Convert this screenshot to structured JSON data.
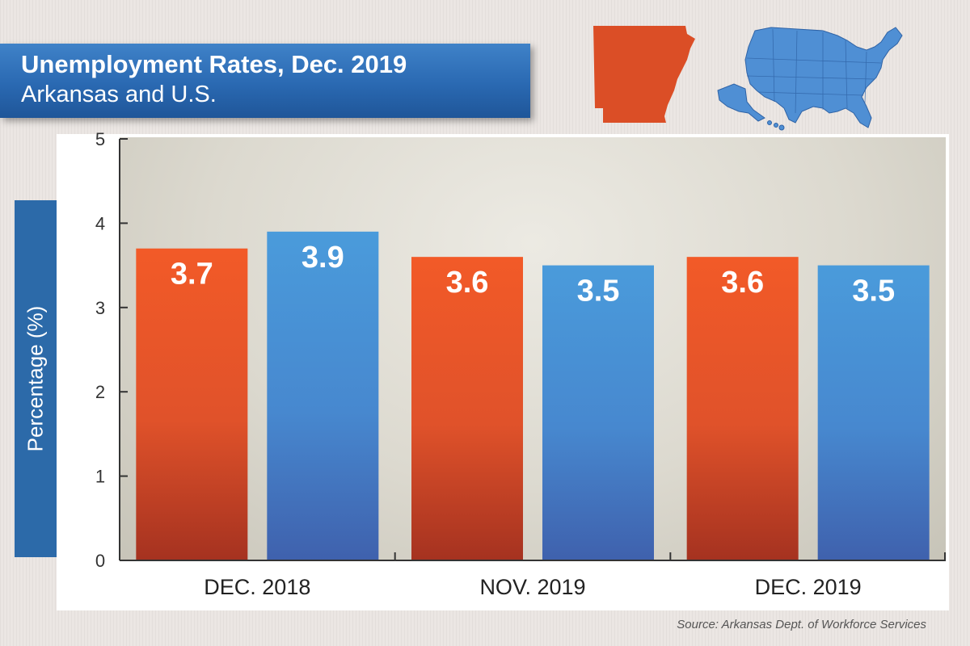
{
  "header": {
    "title": "Unemployment Rates, Dec. 2019",
    "subtitle": "Arkansas and U.S."
  },
  "icons": [
    "arkansas-map-icon",
    "us-map-icon"
  ],
  "colors": {
    "arkansas_top": "#f25a28",
    "arkansas_bottom": "#a53220",
    "us_top": "#4a9bdb",
    "us_bottom": "#3f61ad",
    "banner": "#2a69b2"
  },
  "source": "Source: Arkansas Dept. of Workforce Services",
  "chart_data": {
    "type": "bar",
    "categories": [
      "DEC. 2018",
      "NOV. 2019",
      "DEC. 2019"
    ],
    "series": [
      {
        "values": [
          3.7,
          3.6,
          3.6
        ]
      },
      {
        "values": [
          3.9,
          3.5,
          3.5
        ]
      }
    ],
    "data_labels": [
      [
        "3.7",
        "3.6",
        "3.6"
      ],
      [
        "3.9",
        "3.5",
        "3.5"
      ]
    ],
    "title": "Unemployment Rates, Dec. 2019",
    "subtitle": "Arkansas and U.S.",
    "xlabel": "",
    "ylabel": "Percentage (%)",
    "ylim": [
      0,
      5
    ],
    "yticks": [
      "0",
      "1",
      "2",
      "3",
      "4",
      "5"
    ],
    "grid": false,
    "legend": "none"
  }
}
